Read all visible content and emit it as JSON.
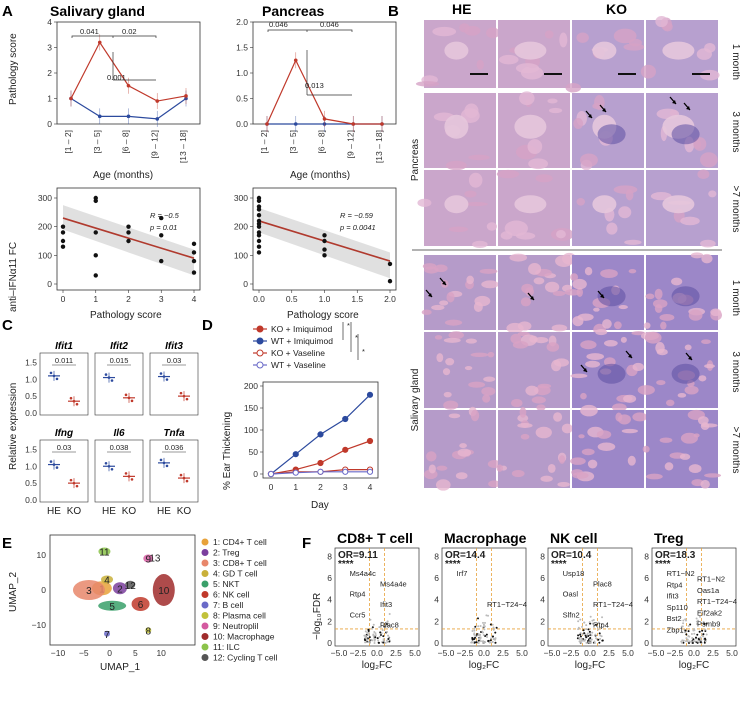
{
  "panels": {
    "A": {
      "label": "A",
      "top": [
        {
          "title": "Salivary gland",
          "ylabel": "Pathology score",
          "xlabel": "Age (months)",
          "categories": [
            "[1 – 2]",
            "[3 – 5]",
            "[6 – 8]",
            "[9 – 12]",
            "[13 – 18]"
          ],
          "ylim": [
            0,
            4
          ],
          "yticks": [
            "0",
            "1",
            "2",
            "3",
            "4"
          ],
          "ko_values": [
            1.0,
            3.2,
            1.5,
            0.9,
            1.1
          ],
          "wt_values": [
            1.0,
            0.3,
            0.3,
            0.2,
            1.0
          ],
          "pvalues": [
            "0.041",
            "0.02",
            "0.001"
          ]
        },
        {
          "title": "Pancreas",
          "ylabel": "",
          "xlabel": "Age (months)",
          "categories": [
            "[1 – 2]",
            "[3 – 5]",
            "[6 – 8]",
            "[9 – 12]",
            "[13 – 18]"
          ],
          "ylim": [
            0,
            2
          ],
          "yticks": [
            "0.0",
            "0.5",
            "1.0",
            "1.5",
            "2.0"
          ],
          "ko_values": [
            0.0,
            1.25,
            0.1,
            0.0,
            0.0
          ],
          "wt_values": [
            0.0,
            0.0,
            0.0,
            0.0,
            0.0
          ],
          "pvalues": [
            "0.046",
            "0.046",
            "0.013"
          ]
        }
      ],
      "bottom": [
        {
          "ylabel": "anti–IFNα11 FC",
          "xlabel": "Pathology score",
          "xticks": [
            "0",
            "1",
            "2",
            "3",
            "4"
          ],
          "yticks": [
            "0",
            "100",
            "200",
            "300"
          ],
          "xlim": [
            0,
            4
          ],
          "ylim": [
            0,
            300
          ],
          "R": "R = −0.5",
          "p": "p = 0.01",
          "points": [
            [
              0,
              200
            ],
            [
              0,
              180
            ],
            [
              0,
              150
            ],
            [
              0,
              130
            ],
            [
              1,
              300
            ],
            [
              1,
              290
            ],
            [
              1,
              180
            ],
            [
              1,
              100
            ],
            [
              1,
              30
            ],
            [
              2,
              200
            ],
            [
              2,
              180
            ],
            [
              2,
              150
            ],
            [
              3,
              230
            ],
            [
              3,
              170
            ],
            [
              3,
              80
            ],
            [
              4,
              140
            ],
            [
              4,
              110
            ],
            [
              4,
              80
            ],
            [
              4,
              40
            ]
          ],
          "fit": [
            [
              0,
              230
            ],
            [
              4,
              90
            ]
          ]
        },
        {
          "ylabel": "",
          "xlabel": "Pathology score",
          "xticks": [
            "0.0",
            "0.5",
            "1.0",
            "1.5",
            "2.0"
          ],
          "yticks": [
            "0",
            "100",
            "200",
            "300"
          ],
          "xlim": [
            0,
            2
          ],
          "ylim": [
            0,
            300
          ],
          "R": "R = −0.59",
          "p": "p = 0.0041",
          "points": [
            [
              0,
              300
            ],
            [
              0,
              290
            ],
            [
              0,
              270
            ],
            [
              0,
              260
            ],
            [
              0,
              240
            ],
            [
              0,
              220
            ],
            [
              0,
              210
            ],
            [
              0,
              200
            ],
            [
              0,
              180
            ],
            [
              0,
              170
            ],
            [
              0,
              150
            ],
            [
              0,
              130
            ],
            [
              0,
              110
            ],
            [
              1,
              170
            ],
            [
              1,
              150
            ],
            [
              1,
              120
            ],
            [
              1,
              100
            ],
            [
              2,
              70
            ],
            [
              2,
              10
            ]
          ],
          "fit": [
            [
              0,
              220
            ],
            [
              2,
              80
            ]
          ]
        }
      ]
    },
    "B": {
      "label": "B",
      "col_headers": [
        "HE",
        "KO"
      ],
      "row_labels": [
        "1 month",
        "3 months",
        ">7 months",
        "1 month",
        "3 months",
        ">7 months"
      ],
      "group_labels": [
        "Pancreas",
        "Salivary gland"
      ]
    },
    "C": {
      "label": "C",
      "ylabel": "Relative expression",
      "genes": [
        {
          "name": "Ifit1",
          "p": "0.011",
          "he": 1.1,
          "ko": 0.35
        },
        {
          "name": "Ifit2",
          "p": "0.015",
          "he": 1.05,
          "ko": 0.45
        },
        {
          "name": "Ifit3",
          "p": "0.03",
          "he": 1.08,
          "ko": 0.5
        },
        {
          "name": "Ifng",
          "p": "0.03",
          "he": 1.05,
          "ko": 0.5
        },
        {
          "name": "Il6",
          "p": "0.038",
          "he": 1.0,
          "ko": 0.7
        },
        {
          "name": "Tnfa",
          "p": "0.036",
          "he": 1.1,
          "ko": 0.65
        }
      ],
      "yticks": [
        "0.0",
        "0.5",
        "1.0",
        "1.5"
      ],
      "xcats": [
        "HE",
        "KO"
      ]
    },
    "D": {
      "label": "D",
      "ylabel": "% Ear Thickening",
      "xlabel": "Day",
      "categories": [
        "0",
        "1",
        "2",
        "3",
        "4"
      ],
      "yticks": [
        "0",
        "50",
        "100",
        "150",
        "200"
      ],
      "ylim": [
        0,
        200
      ],
      "series": [
        {
          "name": "KO + Imiquimod",
          "color": "#c0392b",
          "filled": true,
          "values": [
            0,
            10,
            25,
            55,
            75
          ]
        },
        {
          "name": "WT + Imiquimod",
          "color": "#2c4a9e",
          "filled": true,
          "values": [
            0,
            45,
            90,
            125,
            180
          ]
        },
        {
          "name": "KO + Vaseline",
          "color": "#c0392b",
          "filled": false,
          "values": [
            0,
            5,
            5,
            10,
            10
          ]
        },
        {
          "name": "WT + Vaseline",
          "color": "#6a6ac8",
          "filled": false,
          "values": [
            0,
            3,
            5,
            5,
            5
          ]
        }
      ],
      "sig": [
        "*",
        "*",
        "*"
      ]
    },
    "E": {
      "label": "E",
      "xlabel": "UMAP_1",
      "ylabel": "UMAP_2",
      "xticks": [
        "−10",
        "−5",
        "0",
        "5",
        "10"
      ],
      "yticks": [
        "−10",
        "0",
        "10"
      ],
      "clusters": [
        {
          "id": "1",
          "name": "1: CD4+ T cell",
          "color": "#e8a23a",
          "x": -1.5,
          "y": 0.5
        },
        {
          "id": "2",
          "name": "2: Treg",
          "color": "#7b3f9e",
          "x": 2,
          "y": 0.5
        },
        {
          "id": "3",
          "name": "3: CD8+ T cell",
          "color": "#e8876b",
          "x": -4,
          "y": 0
        },
        {
          "id": "4",
          "name": "4: GD T cell",
          "color": "#c9b03a",
          "x": -0.5,
          "y": 3
        },
        {
          "id": "5",
          "name": "5: NKT",
          "color": "#3aa06a",
          "x": 0.5,
          "y": -4.5
        },
        {
          "id": "6",
          "name": "6: NK cell",
          "color": "#c0392b",
          "x": 6,
          "y": -4
        },
        {
          "id": "7",
          "name": "7: B cell",
          "color": "#6a6ac8",
          "x": -0.5,
          "y": -12.5
        },
        {
          "id": "8",
          "name": "8: Plasma cell",
          "color": "#c2c23a",
          "x": 7.5,
          "y": -11.5
        },
        {
          "id": "9",
          "name": "9: Neutroplil",
          "color": "#d45aa0",
          "x": 7.5,
          "y": 9
        },
        {
          "id": "10",
          "name": "10: Macrophage",
          "color": "#a02c2c",
          "x": 10.5,
          "y": 0
        },
        {
          "id": "11",
          "name": "11: ILC",
          "color": "#8bc34a",
          "x": -1,
          "y": 11
        },
        {
          "id": "12",
          "name": "12: Cycling T cell",
          "color": "#555555",
          "x": 4,
          "y": 1.5
        }
      ],
      "extra_label": "13"
    },
    "F": {
      "label": "F",
      "ylabel": "−log₁₀FDR",
      "xlabel": "log₂FC",
      "xticks": [
        "−5.0",
        "−2.5",
        "0.0",
        "2.5",
        "5.0"
      ],
      "yticks": [
        "0",
        "2",
        "4",
        "6",
        "8"
      ],
      "plots": [
        {
          "title": "CD8+ T cell",
          "or": "OR=9.11",
          "stars": "****",
          "genes": [
            "Ms4a4c",
            "Ms4a4e",
            "Rtp4",
            "Ifit3",
            "Ccr5",
            "Plac8"
          ]
        },
        {
          "title": "Macrophage",
          "or": "OR=14.4",
          "stars": "****",
          "genes": [
            "Irf7",
            "RT1−T24−4"
          ]
        },
        {
          "title": "NK cell",
          "or": "OR=10.4",
          "stars": "****",
          "genes": [
            "Usp18",
            "Plac8",
            "Oasl",
            "RT1−T24−4",
            "Slfn2",
            "Rtp4"
          ]
        },
        {
          "title": "Treg",
          "or": "OR=18.3",
          "stars": "****",
          "genes": [
            "RT1−N2",
            "RT1−N2",
            "Rtp4",
            "Oas1a",
            "Ifit3",
            "RT1−T24−4",
            "Sp110",
            "Eif2ak2",
            "Bst2",
            "Psmb9",
            "Zbp1"
          ]
        }
      ]
    }
  },
  "colors": {
    "ko": "#c0392b",
    "wt": "#2c4a9e",
    "he_tissue": "#d9a8c8",
    "ko_tissue": "#9a86c4",
    "guide": "#e8a23a"
  }
}
